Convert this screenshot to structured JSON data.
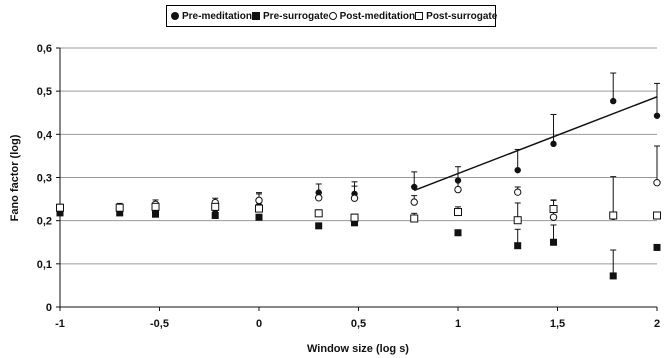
{
  "chart_data": {
    "type": "scatter",
    "xlabel": "Window size (log s)",
    "ylabel": "Fano factor (log)",
    "xlim": [
      -1,
      2
    ],
    "ylim": [
      0,
      0.6
    ],
    "x_ticks": [
      -1,
      -0.5,
      0,
      0.5,
      1,
      1.5,
      2
    ],
    "x_tick_labels": [
      "-1",
      "-0,5",
      "0",
      "0,5",
      "1",
      "1,5",
      "2"
    ],
    "y_ticks": [
      0,
      0.1,
      0.2,
      0.3,
      0.4,
      0.5,
      0.6
    ],
    "y_tick_labels": [
      "0",
      "0,1",
      "0,2",
      "0,3",
      "0,4",
      "0,5",
      "0,6"
    ],
    "grid": "horizontal",
    "legend_position": "top",
    "x": [
      -1,
      -0.7,
      -0.52,
      -0.22,
      0,
      0.3,
      0.48,
      0.78,
      1,
      1.3,
      1.48,
      1.78,
      2
    ],
    "series": [
      {
        "name": "Pre-meditation",
        "marker": "filled-circle",
        "color": "#111111",
        "values": [
          0.22,
          0.225,
          0.225,
          0.225,
          0.235,
          0.265,
          0.262,
          0.278,
          0.293,
          0.317,
          0.378,
          0.477,
          0.443
        ],
        "error_up": [
          0.01,
          0.01,
          0.012,
          0.012,
          0.03,
          0.02,
          0.028,
          0.035,
          0.032,
          0.048,
          0.068,
          0.065,
          0.075
        ]
      },
      {
        "name": "Pre-surrogate",
        "marker": "filled-square",
        "color": "#111111",
        "values": [
          0.218,
          0.218,
          0.215,
          0.212,
          0.208,
          0.188,
          0.195,
          0.205,
          0.172,
          0.142,
          0.15,
          0.072,
          0.138
        ],
        "error_up": [
          0.005,
          0.005,
          0.005,
          0.005,
          0.005,
          0.005,
          0.005,
          0.005,
          0.005,
          0.038,
          0.04,
          0.06,
          0.005
        ]
      },
      {
        "name": "Post-meditation",
        "marker": "open-circle",
        "color": "#111111",
        "values": [
          0.23,
          0.232,
          0.238,
          0.242,
          0.247,
          0.253,
          0.252,
          0.243,
          0.272,
          0.266,
          0.208,
          0.21,
          0.288
        ],
        "error_up": [
          0.008,
          0.008,
          0.01,
          0.01,
          0.015,
          0.012,
          0.028,
          0.015,
          0.02,
          0.012,
          0.04,
          0.092,
          0.085
        ]
      },
      {
        "name": "Post-surrogate",
        "marker": "open-square",
        "color": "#111111",
        "values": [
          0.23,
          0.23,
          0.232,
          0.232,
          0.228,
          0.217,
          0.207,
          0.205,
          0.22,
          0.201,
          0.227,
          0.212,
          0.212
        ],
        "error_up": [
          0.005,
          0.005,
          0.005,
          0.005,
          0.005,
          0.008,
          0.008,
          0.012,
          0.012,
          0.04,
          0.02,
          0.005,
          0.005
        ]
      }
    ],
    "trend_line": {
      "x": [
        0.78,
        2
      ],
      "y": [
        0.27,
        0.487
      ]
    }
  }
}
